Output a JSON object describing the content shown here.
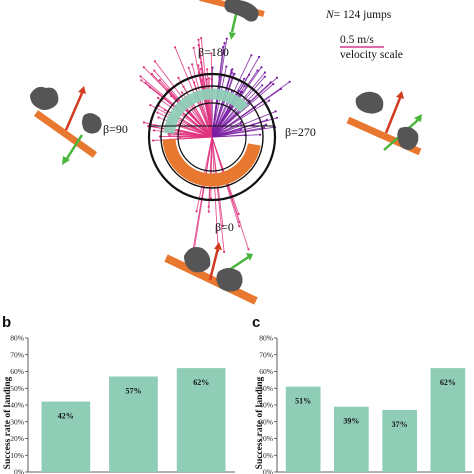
{
  "figure": {
    "legend": {
      "n_prefix": "N",
      "n_text": "= 124 jumps",
      "scale_value": "0.5 m/s",
      "scale_label": "velocity scale"
    },
    "beta_labels": {
      "top": "β=180",
      "left": "β=90",
      "right": "β=270",
      "bottom": "β=0"
    },
    "colors": {
      "bar": "#8fcdb7",
      "vector_high": "#7b1fa2",
      "vector_low": "#e0337f",
      "ring_orange": "#e8782f",
      "ring_teal": "#8fcdb7",
      "branch": "#e8782f",
      "arrow_red": "#d23a1f",
      "arrow_green": "#49b63b",
      "animal": "#555555"
    }
  },
  "chart_data": [
    {
      "panel": "b",
      "type": "bar",
      "ylabel": "Success rate of landing",
      "ylim": [
        0,
        80
      ],
      "yticks": [
        "0%",
        "10%",
        "20%",
        "30%",
        "40%",
        "50%",
        "60%",
        "70%",
        "80%"
      ],
      "values": [
        42,
        57,
        62
      ],
      "value_labels": [
        "42%",
        "57%",
        "62%"
      ]
    },
    {
      "panel": "c",
      "type": "bar",
      "ylabel": "Success rate of landing",
      "ylim": [
        0,
        80
      ],
      "yticks": [
        "0%",
        "10%",
        "20%",
        "30%",
        "40%",
        "50%",
        "60%",
        "70%",
        "80%"
      ],
      "values": [
        51,
        39,
        37,
        62
      ],
      "value_labels": [
        "51%",
        "39%",
        "37%",
        "62%"
      ]
    }
  ]
}
